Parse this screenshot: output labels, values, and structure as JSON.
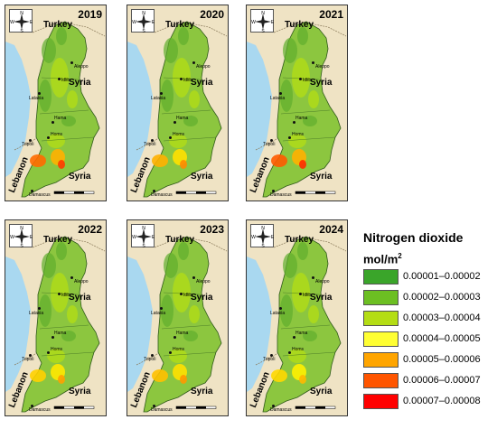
{
  "panels": [
    {
      "year": "2019",
      "hotspots": [
        "#ff6a00",
        "#ffb000",
        "#ff3a00"
      ]
    },
    {
      "year": "2020",
      "hotspots": [
        "#ffb000",
        "#ffe000",
        "#ff8a00"
      ]
    },
    {
      "year": "2021",
      "hotspots": [
        "#ff5a00",
        "#ffb000",
        "#ff2a00"
      ]
    },
    {
      "year": "2022",
      "hotspots": [
        "#ffd000",
        "#ffe800",
        "#ffa000"
      ]
    },
    {
      "year": "2023",
      "hotspots": [
        "#ffc000",
        "#ffe000",
        "#ff9800"
      ]
    },
    {
      "year": "2024",
      "hotspots": [
        "#ffd800",
        "#fff000",
        "#ffb800"
      ]
    }
  ],
  "map_labels": {
    "turkey": "Turkey",
    "syria": "Syria",
    "lebanon": "Lebanon",
    "aleppo": "Aleppo",
    "idlib": "Idlib",
    "latakia": "Latakia",
    "hama": "Hama",
    "homs": "Homs",
    "tripoli": "Tripoli",
    "damascus": "Damascus",
    "compass": {
      "n": "N",
      "s": "S",
      "e": "E",
      "w": "W"
    }
  },
  "legend": {
    "title": "Nitrogen dioxide",
    "unit_base": "mol/m",
    "unit_exp": "2",
    "classes": [
      {
        "range": "0.00001–0.00002",
        "color": "#3aa52a"
      },
      {
        "range": "0.00002–0.00003",
        "color": "#6cbf22"
      },
      {
        "range": "0.00003–0.00004",
        "color": "#b4dd14"
      },
      {
        "range": "0.00004–0.00005",
        "color": "#ffff33"
      },
      {
        "range": "0.00005–0.00006",
        "color": "#ffa500"
      },
      {
        "range": "0.00006–0.00007",
        "color": "#ff5500"
      },
      {
        "range": "0.00007–0.00008",
        "color": "#ff0000"
      }
    ]
  },
  "colors": {
    "sea": "#a9d8f0",
    "land": "#efe3c4",
    "region_base": "#8cc63f",
    "region_dark": "#5fae2e"
  }
}
